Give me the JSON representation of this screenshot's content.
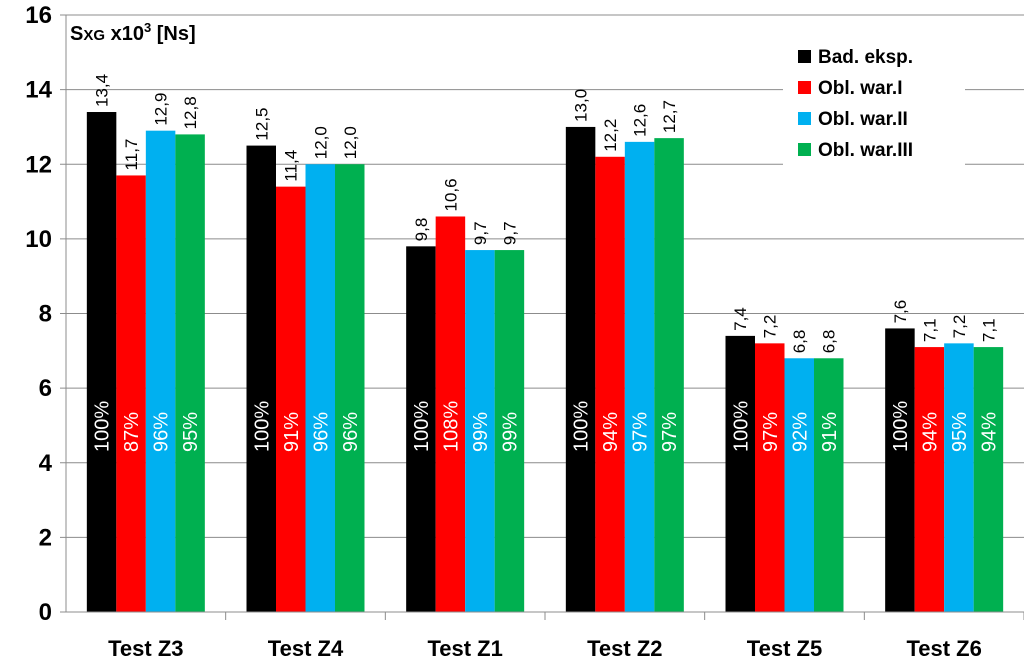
{
  "chart_data": {
    "type": "bar",
    "ylabel_main": "S",
    "ylabel_sub": "XG",
    "ylabel_unit": " x10",
    "ylabel_sup": "3",
    "ylabel_tail": " [Ns]",
    "ylim": [
      0,
      16
    ],
    "yticks": [
      "0",
      "2",
      "4",
      "6",
      "8",
      "10",
      "12",
      "14",
      "16"
    ],
    "grid": true,
    "legend_position": "top-right",
    "categories": [
      "Test Z3",
      "Test Z4",
      "Test Z1",
      "Test Z2",
      "Test Z5",
      "Test Z6"
    ],
    "series": [
      {
        "name": "Bad. eksp.",
        "color": "#000000",
        "pct_color": "#ffffff",
        "values": [
          13.4,
          12.5,
          9.8,
          13.0,
          7.4,
          7.6
        ],
        "value_labels": [
          "13,4",
          "12,5",
          "9,8",
          "13,0",
          "7,4",
          "7,6"
        ],
        "percent_labels": [
          "100%",
          "100%",
          "100%",
          "100%",
          "100%",
          "100%"
        ]
      },
      {
        "name": "Obl. war.I",
        "color": "#ff0000",
        "pct_color": "#ffffff",
        "values": [
          11.7,
          11.4,
          10.6,
          12.2,
          7.2,
          7.1
        ],
        "value_labels": [
          "11,7",
          "11,4",
          "10,6",
          "12,2",
          "7,2",
          "7,1"
        ],
        "percent_labels": [
          "87%",
          "91%",
          "108%",
          "94%",
          "97%",
          "94%"
        ]
      },
      {
        "name": "Obl. war.II",
        "color": "#00b0f0",
        "pct_color": "#ffffff",
        "values": [
          12.9,
          12.0,
          9.7,
          12.6,
          6.8,
          7.2
        ],
        "value_labels": [
          "12,9",
          "12,0",
          "9,7",
          "12,6",
          "6,8",
          "7,2"
        ],
        "percent_labels": [
          "96%",
          "96%",
          "99%",
          "97%",
          "92%",
          "95%"
        ]
      },
      {
        "name": "Obl. war.III",
        "color": "#00b050",
        "pct_color": "#ffffff",
        "values": [
          12.8,
          12.0,
          9.7,
          12.7,
          6.8,
          7.1
        ],
        "value_labels": [
          "12,8",
          "12,0",
          "9,7",
          "12,7",
          "6,8",
          "7,1"
        ],
        "percent_labels": [
          "95%",
          "96%",
          "99%",
          "97%",
          "91%",
          "94%"
        ]
      }
    ]
  }
}
